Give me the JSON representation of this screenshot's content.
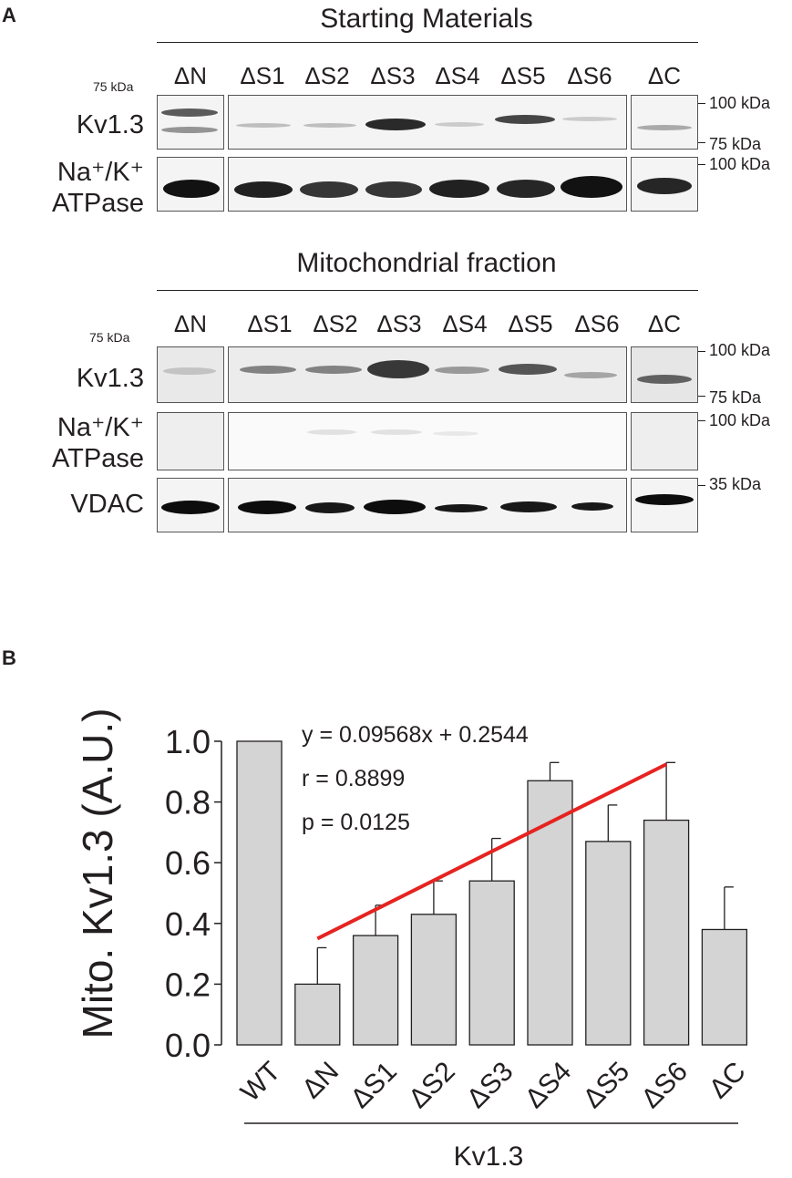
{
  "panel_a": {
    "label": "A",
    "starting_title": "Starting Materials",
    "mito_title": "Mitochondrial fraction",
    "lanes": [
      "ΔN",
      "ΔS1",
      "ΔS2",
      "ΔS3",
      "ΔS4",
      "ΔS5",
      "ΔS6",
      "ΔC"
    ],
    "row_kv": "Kv1.3",
    "row_na": "Na⁺/K⁺",
    "row_atpase": "ATPase",
    "row_vdac": "VDAC",
    "markers": {
      "m75_small": "75 kDa",
      "m100": "100 kDa",
      "m75": "75 kDa",
      "m35": "35 kDa"
    }
  },
  "panel_b": {
    "label": "B",
    "equation": "y = 0.09568x + 0.2544",
    "r_text": "r = 0.8899",
    "p_text": "p = 0.0125",
    "group_label": "Kv1.3"
  },
  "chart_data": {
    "type": "bar",
    "ylabel": "Mito. Kv1.3 (A.U.)",
    "xlabel": "Kv1.3",
    "categories": [
      "WT",
      "ΔN",
      "ΔS1",
      "ΔS2",
      "ΔS3",
      "ΔS4",
      "ΔS5",
      "ΔS6",
      "ΔC"
    ],
    "values": [
      1.0,
      0.2,
      0.36,
      0.43,
      0.54,
      0.87,
      0.67,
      0.74,
      0.38
    ],
    "errors": [
      0.0,
      0.12,
      0.1,
      0.11,
      0.14,
      0.06,
      0.12,
      0.19,
      0.14
    ],
    "ylim": [
      0,
      1.0
    ],
    "yticks": [
      "0.0",
      "0.2",
      "0.4",
      "0.6",
      "0.8",
      "1.0"
    ],
    "fit_line": {
      "slope": 0.09568,
      "intercept": 0.2544,
      "from_category": "ΔN",
      "to_category": "ΔS6",
      "color": "#e52421"
    },
    "bar_color": "#d4d4d4"
  }
}
